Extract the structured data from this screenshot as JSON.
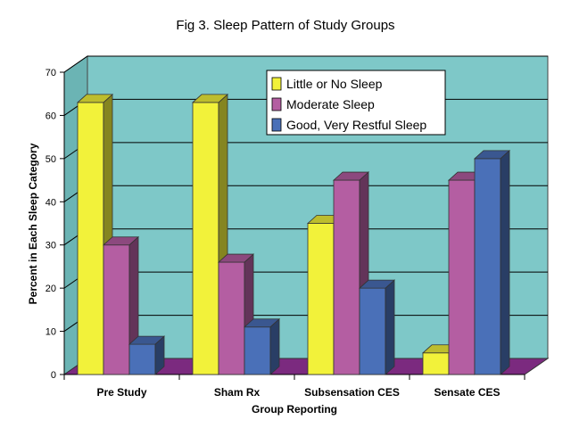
{
  "chart_data": {
    "type": "bar",
    "title": "Fig 3. Sleep Pattern of Study Groups",
    "xlabel": "Group Reporting",
    "ylabel": "Percent in Each Sleep Category",
    "categories": [
      "Pre Study",
      "Sham Rx",
      "Subsensation CES",
      "Sensate CES"
    ],
    "series": [
      {
        "name": "Little or No Sleep",
        "values": [
          63,
          63,
          35,
          5
        ],
        "color": "#f2f23a"
      },
      {
        "name": "Moderate Sleep",
        "values": [
          30,
          26,
          45,
          45
        ],
        "color": "#b45ea2"
      },
      {
        "name": "Good, Very Restful Sleep",
        "values": [
          7,
          11,
          20,
          50
        ],
        "color": "#4a70b8"
      }
    ],
    "ylim": [
      0,
      70
    ],
    "yticks": [
      "0",
      "10",
      "20",
      "30",
      "40",
      "50",
      "60",
      "70"
    ],
    "grid": true,
    "legend": "top-right",
    "wall_color": "#7ec8c8",
    "floor_color": "#7b2a7f"
  }
}
